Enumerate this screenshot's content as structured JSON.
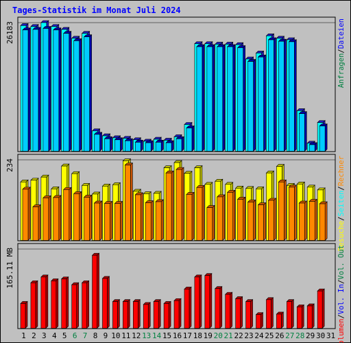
{
  "title": "Tages-Statistik im Monat Juli 2024",
  "colors": {
    "background": "#c0c0c0",
    "title": "#0000ff",
    "hits_front": "#00ffff",
    "hits_top": "#2020c0",
    "files_front": "#00ccff",
    "files_top": "#0000aa",
    "visits_front": "#ffff00",
    "visits_top": "#c0c000",
    "sites_front": "#ff8800",
    "sites_top": "#cc5500",
    "volume_front": "#ff0000",
    "volume_top": "#aa0000",
    "weekend_label": "#008040",
    "weekday_label": "#000000"
  },
  "chart_data": [
    {
      "type": "bar",
      "panel": "hits-files",
      "y_tick_label": "26183",
      "ylim": [
        0,
        26183
      ],
      "right_legend": [
        {
          "text": "Anfragen",
          "color": "#008040"
        },
        {
          "text": "/",
          "color": "#000000"
        },
        {
          "text": "Dateien",
          "color": "#0000ff"
        }
      ],
      "series": [
        {
          "name": "Anfragen",
          "values": [
            25580,
            25400,
            26183,
            25400,
            24800,
            23000,
            24000,
            4200,
            3200,
            2800,
            2700,
            2400,
            2100,
            2500,
            2300,
            3000,
            5500,
            21900,
            21900,
            21800,
            21800,
            21700,
            18800,
            20000,
            23500,
            23000,
            22700,
            8300,
            1700,
            5900,
            0
          ]
        },
        {
          "name": "Dateien",
          "values": [
            24700,
            24800,
            25000,
            24700,
            24000,
            22500,
            23300,
            3500,
            2600,
            2400,
            2200,
            1900,
            1800,
            1900,
            1800,
            2600,
            4800,
            21300,
            21300,
            21300,
            21300,
            21100,
            18300,
            19200,
            22700,
            22400,
            22300,
            7700,
            1400,
            5200,
            0
          ]
        }
      ]
    },
    {
      "type": "bar",
      "panel": "visits-sites",
      "y_tick_label": "234",
      "ylim": [
        0,
        234
      ],
      "right_legend": [
        {
          "text": "Besuche",
          "color": "#ffff00"
        },
        {
          "text": "/",
          "color": "#000000"
        },
        {
          "text": "Seiten",
          "color": "#00ffff"
        },
        {
          "text": "/",
          "color": "#000000"
        },
        {
          "text": "Rechner",
          "color": "#ff8800"
        }
      ],
      "series": [
        {
          "name": "Besuche",
          "values": [
            170,
            175,
            184,
            150,
            216,
            194,
            160,
            135,
            158,
            162,
            231,
            143,
            136,
            137,
            211,
            226,
            195,
            211,
            163,
            172,
            163,
            152,
            151,
            150,
            196,
            215,
            160,
            164,
            155,
            147,
            0
          ]
        },
        {
          "name": "Rechner",
          "values": [
            149,
            98,
            124,
            125,
            148,
            136,
            126,
            109,
            108,
            108,
            219,
            133,
            110,
            113,
            196,
            206,
            134,
            154,
            96,
            127,
            140,
            120,
            112,
            104,
            117,
            170,
            155,
            109,
            114,
            107,
            0
          ]
        }
      ]
    },
    {
      "type": "bar",
      "panel": "volume",
      "y_tick_label": "165.11 MB",
      "ylim": [
        0,
        165.11
      ],
      "right_legend": [
        {
          "text": "Volumen",
          "color": "#ff0000"
        },
        {
          "text": "/",
          "color": "#000000"
        },
        {
          "text": "Vol. In",
          "color": "#0000ff"
        },
        {
          "text": "/",
          "color": "#000000"
        },
        {
          "text": "Vol. Out",
          "color": "#008040"
        }
      ],
      "series": [
        {
          "name": "Volumen",
          "values": [
            52,
            95,
            107,
            99,
            103,
            91,
            95,
            152,
            104,
            56,
            56,
            56,
            50,
            56,
            52,
            58,
            82,
            107,
            110,
            83,
            71,
            62,
            56,
            29,
            60,
            30,
            56,
            45,
            47,
            78,
            0
          ]
        }
      ]
    }
  ],
  "x_axis": {
    "labels": [
      "1",
      "2",
      "3",
      "4",
      "5",
      "6",
      "7",
      "8",
      "9",
      "10",
      "11",
      "12",
      "13",
      "14",
      "15",
      "16",
      "17",
      "18",
      "19",
      "20",
      "21",
      "22",
      "23",
      "24",
      "25",
      "26",
      "27",
      "28",
      "29",
      "30",
      "31"
    ],
    "weekend_indices": [
      5,
      6,
      12,
      13,
      19,
      20,
      26,
      27
    ]
  }
}
